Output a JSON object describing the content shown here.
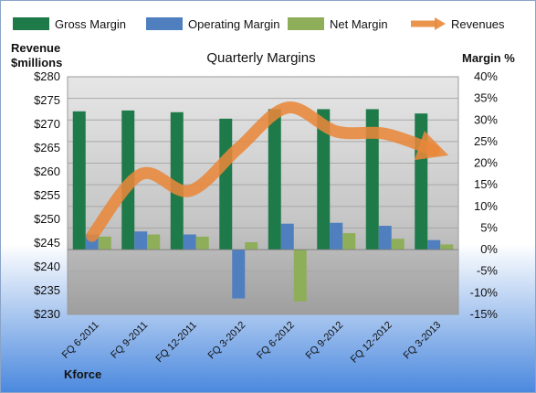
{
  "chart_data": {
    "type": "bar",
    "title": "Quarterly Margins",
    "ylabel_left": [
      "Revenue",
      "$millions"
    ],
    "ylabel_right": "Margin %",
    "footer": "Kforce",
    "categories": [
      "FQ 6-2011",
      "FQ 9-2011",
      "FQ 12-2011",
      "FQ 3-2012",
      "FQ 6-2012",
      "FQ 9-2012",
      "FQ 12-2012",
      "FQ 3-2013"
    ],
    "left_axis": {
      "min": 230,
      "max": 280,
      "step": 5,
      "ticks": [
        "$230",
        "$235",
        "$240",
        "$245",
        "$250",
        "$255",
        "$260",
        "$265",
        "$270",
        "$275",
        "$280"
      ]
    },
    "right_axis": {
      "min": -15,
      "max": 40,
      "step": 5,
      "ticks": [
        "-15%",
        "-10%",
        "-5%",
        "0%",
        "5%",
        "10%",
        "15%",
        "20%",
        "25%",
        "30%",
        "35%",
        "40%"
      ]
    },
    "series": [
      {
        "name": "Gross Margin",
        "axis": "right",
        "color": "#1f7a4a",
        "values": [
          32.0,
          32.2,
          31.8,
          30.3,
          32.5,
          32.5,
          32.5,
          31.5
        ]
      },
      {
        "name": "Operating Margin",
        "axis": "right",
        "color": "#4f7fbf",
        "values": [
          3.5,
          4.2,
          3.5,
          -11.3,
          6.0,
          6.2,
          5.5,
          2.2
        ]
      },
      {
        "name": "Net Margin",
        "axis": "right",
        "color": "#8fae5a",
        "values": [
          3.0,
          3.5,
          3.0,
          1.7,
          -12.0,
          3.8,
          2.5,
          1.2
        ]
      },
      {
        "name": "Revenues",
        "axis": "left",
        "type": "line",
        "color": "#e8883a",
        "values": [
          246.5,
          259.5,
          256.0,
          265.0,
          273.5,
          268.5,
          268.0,
          264.5
        ]
      }
    ],
    "legend": [
      "Gross Margin",
      "Operating Margin",
      "Net Margin",
      "Revenues"
    ],
    "legend_position": "top",
    "grid": true
  }
}
